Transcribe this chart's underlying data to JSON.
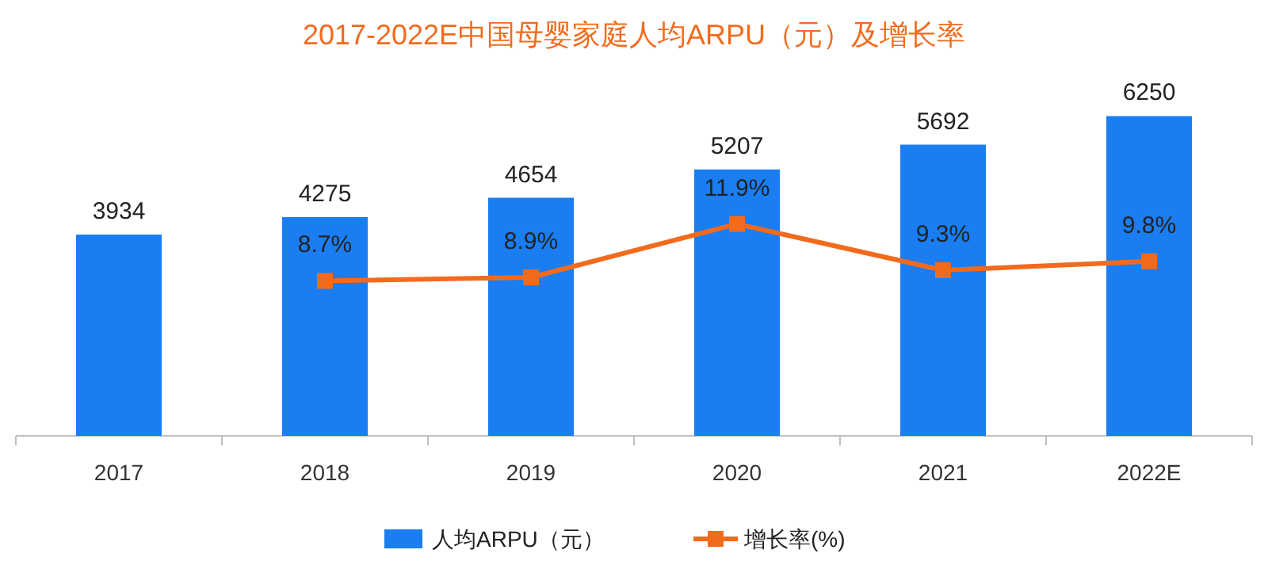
{
  "chart_data": {
    "type": "bar",
    "title": "2017-2022E中国母婴家庭人均ARPU（元）及增长率",
    "categories": [
      "2017",
      "2018",
      "2019",
      "2020",
      "2021",
      "2022E"
    ],
    "series": [
      {
        "name": "人均ARPU（元）",
        "color": "#1a7df2",
        "values": [
          3934,
          4275,
          4654,
          5207,
          5692,
          6250
        ],
        "value_labels": [
          "3934",
          "4275",
          "4654",
          "5207",
          "5692",
          "6250"
        ]
      },
      {
        "name": "增长率(%)",
        "type": "line",
        "axis": "y2",
        "marker": "square",
        "color": "#f26b1d",
        "values": [
          null,
          8.7,
          8.9,
          11.9,
          9.3,
          9.8
        ],
        "value_labels": [
          null,
          "8.7%",
          "8.9%",
          "11.9%",
          "9.3%",
          "9.8%"
        ]
      }
    ],
    "legend": "bottom"
  }
}
